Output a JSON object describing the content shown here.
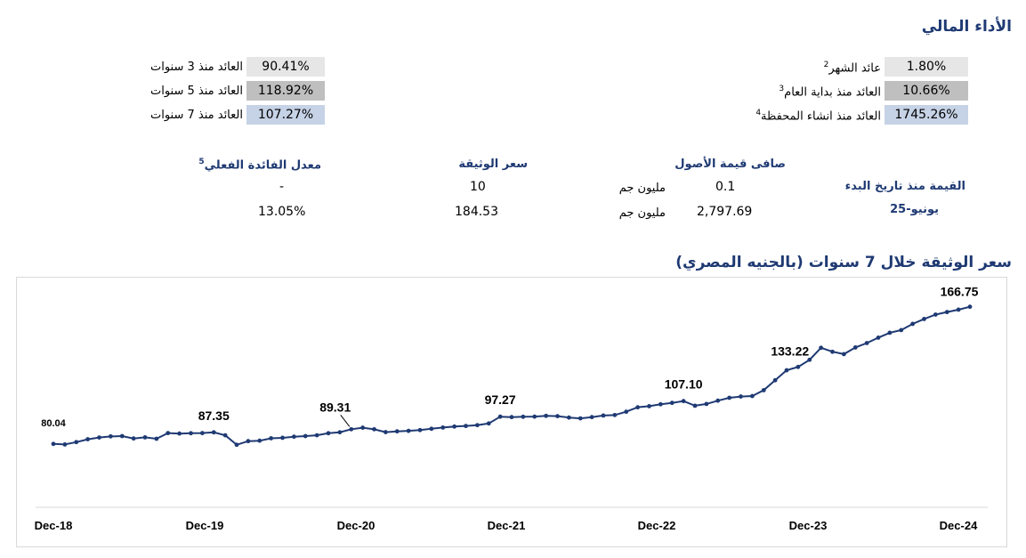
{
  "header": {
    "title": "الأداء المالي"
  },
  "returns_right": [
    {
      "label": "عائد الشهر",
      "sup": "2",
      "value": "1.80%"
    },
    {
      "label": "العائد منذ بداية العام",
      "sup": "3",
      "value": "10.66%"
    },
    {
      "label": "العائد منذ انشاء المحفظة",
      "sup": "4",
      "value": "1745.26%"
    }
  ],
  "returns_left": [
    {
      "label": "العائد منذ 3 سنوات",
      "value": "90.41%"
    },
    {
      "label": "العائد منذ 5 سنوات",
      "value": "118.92%"
    },
    {
      "label": "العائد منذ 7 سنوات",
      "value": "107.27%"
    }
  ],
  "info": {
    "value_since_start": "القيمة منذ تاريخ البدء",
    "date": "يونيو-25",
    "net_assets_header": "صافى قيمة الأصول",
    "unit": "مليون جم",
    "net_assets_start": "0.1",
    "net_assets_current": "2,797.69",
    "nav_header": "سعر الوثيقة",
    "nav_start": "10",
    "nav_current": "184.53",
    "yield_header": "معدل الفائدة الفعلي",
    "yield_sup": "5",
    "yield_start": "-",
    "yield_current": "13.05%"
  },
  "chart_title": "سعر الوثيقة خلال 7 سنوات (بالجنيه المصري)",
  "colors": {
    "accent": "#1f3a73",
    "line": "#1f3a73"
  },
  "chart_data": {
    "type": "line",
    "title": "سعر الوثيقة خلال 7 سنوات (بالجنيه المصري)",
    "x_tick_labels": [
      "Dec-18",
      "Dec-19",
      "Dec-20",
      "Dec-21",
      "Dec-22",
      "Dec-23",
      "Dec-24"
    ],
    "ylim": [
      40,
      175
    ],
    "grid": false,
    "series": [
      {
        "values": [
          80.04,
          79.7,
          81.2,
          83.0,
          84.1,
          84.8,
          85.0,
          83.5,
          84.2,
          83.3,
          86.9,
          86.6,
          86.8,
          86.9,
          87.35,
          85.5,
          79.5,
          81.8,
          82.1,
          83.6,
          83.9,
          84.6,
          85.0,
          85.5,
          86.8,
          87.4,
          89.31,
          90.3,
          89.3,
          87.5,
          88.0,
          88.3,
          88.8,
          89.6,
          90.4,
          91.0,
          91.4,
          91.9,
          93.0,
          97.27,
          97.0,
          97.2,
          97.3,
          97.8,
          97.6,
          96.7,
          96.2,
          97.0,
          98.0,
          98.3,
          100.4,
          103.2,
          103.9,
          105.1,
          106.0,
          107.1,
          104.2,
          105.3,
          107.4,
          109.2,
          110.0,
          110.3,
          114.0,
          120.3,
          126.6,
          128.7,
          133.22,
          140.8,
          138.3,
          136.8,
          141.0,
          143.8,
          147.2,
          150.3,
          152.0,
          155.9,
          159.0,
          161.8,
          163.4,
          164.9,
          166.75
        ]
      }
    ],
    "point_labels": [
      {
        "index": 0,
        "text": "80.04"
      },
      {
        "index": 14,
        "text": "87.35"
      },
      {
        "index": 26,
        "text": "89.31"
      },
      {
        "index": 39,
        "text": "97.27"
      },
      {
        "index": 55,
        "text": "107.10"
      },
      {
        "index": 66,
        "text": "133.22"
      },
      {
        "index": 80,
        "text": "166.75"
      }
    ]
  }
}
